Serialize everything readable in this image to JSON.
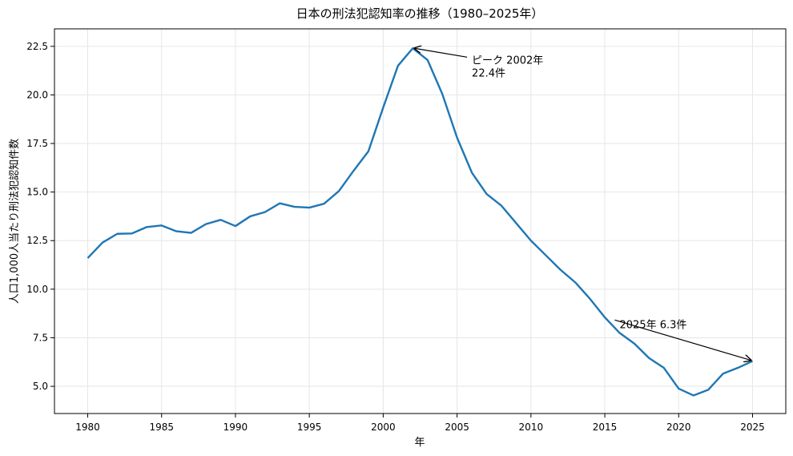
{
  "chart_data": {
    "type": "line",
    "title": "日本の刑法犯認知率の推移（1980–2025年）",
    "xlabel": "年",
    "ylabel": "人口1,000人当たり刑法犯認知件数",
    "xlim": [
      1977.75,
      2027.25
    ],
    "ylim": [
      3.6,
      23.4
    ],
    "xticks": [
      1980,
      1985,
      1990,
      1995,
      2000,
      2005,
      2010,
      2015,
      2020,
      2025
    ],
    "yticks": [
      5.0,
      7.5,
      10.0,
      12.5,
      15.0,
      17.5,
      20.0,
      22.5
    ],
    "grid": true,
    "series": [
      {
        "color": "#1f77b4",
        "x": [
          1980,
          1981,
          1982,
          1983,
          1984,
          1985,
          1986,
          1987,
          1988,
          1989,
          1990,
          1991,
          1992,
          1993,
          1994,
          1995,
          1996,
          1997,
          1998,
          1999,
          2000,
          2001,
          2002,
          2003,
          2004,
          2005,
          2006,
          2007,
          2008,
          2009,
          2010,
          2011,
          2012,
          2013,
          2014,
          2015,
          2016,
          2017,
          2018,
          2019,
          2020,
          2021,
          2022,
          2023,
          2024,
          2025
        ],
        "y": [
          11.6,
          12.4,
          12.85,
          12.87,
          13.2,
          13.28,
          12.98,
          12.9,
          13.35,
          13.57,
          13.25,
          13.75,
          13.97,
          14.42,
          14.24,
          14.2,
          14.4,
          15.05,
          16.1,
          17.1,
          19.35,
          21.5,
          22.4,
          21.8,
          20.05,
          17.8,
          16.0,
          14.9,
          14.3,
          13.4,
          12.5,
          11.75,
          11.0,
          10.35,
          9.5,
          8.55,
          7.75,
          7.2,
          6.45,
          5.95,
          4.88,
          4.53,
          4.82,
          5.65,
          5.95,
          6.3
        ]
      }
    ],
    "annotations": [
      {
        "lines": [
          "ピーク 2002年",
          "22.4件"
        ],
        "x": 2002,
        "y": 22.4,
        "text_x": 2006,
        "text_y": 21.2
      },
      {
        "lines": [
          "2025年 6.3件"
        ],
        "x": 2025,
        "y": 6.3,
        "text_x": 2016,
        "text_y": 8.0
      }
    ]
  }
}
